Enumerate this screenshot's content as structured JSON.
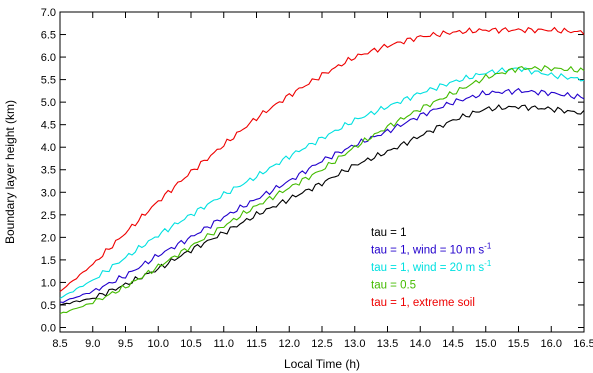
{
  "chart_data": {
    "type": "line",
    "title": "",
    "xlabel": "Local Time (h)",
    "ylabel": "Boundary layer height (km)",
    "xlim": [
      8.5,
      16.5
    ],
    "ylim": [
      -0.1,
      7.0
    ],
    "xticks": [
      "8.5",
      "9.0",
      "9.5",
      "10.0",
      "10.5",
      "11.0",
      "11.5",
      "12.0",
      "12.5",
      "13.0",
      "13.5",
      "14.0",
      "14.5",
      "15.0",
      "15.5",
      "16.0",
      "16.5"
    ],
    "yticks": [
      "0.0",
      "0.5",
      "1.0",
      "1.5",
      "2.0",
      "2.5",
      "3.0",
      "3.5",
      "4.0",
      "4.5",
      "5.0",
      "5.5",
      "6.0",
      "6.5",
      "7.0"
    ],
    "grid": false,
    "legend_position": "lower-right",
    "x": [
      8.5,
      9.0,
      9.5,
      10.0,
      10.5,
      11.0,
      11.5,
      12.0,
      12.5,
      13.0,
      13.5,
      14.0,
      14.5,
      15.0,
      15.5,
      16.0,
      16.5
    ],
    "series": [
      {
        "name": "tau = 1",
        "color": "#000000",
        "values": [
          0.5,
          0.65,
          0.95,
          1.3,
          1.72,
          2.1,
          2.5,
          2.85,
          3.2,
          3.6,
          3.9,
          4.25,
          4.6,
          4.85,
          4.9,
          4.85,
          4.75
        ],
        "label_lines": [
          "tau = 1"
        ]
      },
      {
        "name": "tau = 1, wind = 10 m s-1",
        "color": "#2200cc",
        "values": [
          0.55,
          0.8,
          1.15,
          1.6,
          2.0,
          2.45,
          2.85,
          3.25,
          3.7,
          4.05,
          4.35,
          4.7,
          5.0,
          5.2,
          5.25,
          5.2,
          5.1
        ],
        "label_lines": [
          "tau = 1, wind = 10 m s",
          "-1"
        ]
      },
      {
        "name": "tau = 1, wind = 20 m s-1",
        "color": "#00e0e0",
        "values": [
          0.65,
          1.05,
          1.55,
          2.05,
          2.5,
          2.95,
          3.35,
          3.8,
          4.2,
          4.6,
          4.9,
          5.2,
          5.45,
          5.65,
          5.75,
          5.6,
          5.5
        ],
        "label_lines": [
          "tau = 1, wind = 20 m s",
          "-1"
        ]
      },
      {
        "name": "tau = 0.5",
        "color": "#44bb00",
        "values": [
          0.3,
          0.55,
          0.9,
          1.35,
          1.8,
          2.25,
          2.7,
          3.1,
          3.5,
          4.0,
          4.45,
          4.85,
          5.2,
          5.55,
          5.75,
          5.75,
          5.7
        ],
        "label_lines": [
          "tau = 0.5"
        ]
      },
      {
        "name": "tau = 1, extreme soil",
        "color": "#ee0000",
        "values": [
          0.8,
          1.4,
          2.1,
          2.8,
          3.45,
          4.05,
          4.65,
          5.15,
          5.6,
          6.0,
          6.25,
          6.45,
          6.55,
          6.6,
          6.6,
          6.6,
          6.55
        ],
        "label_lines": [
          "tau = 1, extreme soil"
        ]
      }
    ]
  }
}
